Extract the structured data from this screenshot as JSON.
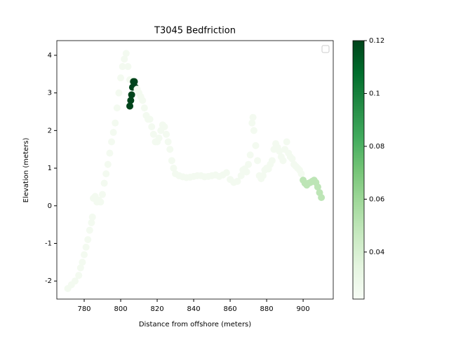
{
  "chart_data": {
    "type": "scatter",
    "title": "T3045 Bedfriction",
    "x_label": "Distance from offshore (meters)",
    "y_label": "Elevation (meters)",
    "x": [
      771,
      773,
      775,
      777,
      778,
      779,
      780,
      781,
      782,
      783,
      784,
      784.5,
      785,
      786,
      787,
      788,
      789,
      790,
      791,
      792,
      793,
      794,
      795,
      796,
      797,
      798,
      799,
      800,
      801,
      802,
      803,
      804,
      805,
      805,
      805.5,
      806,
      806.5,
      807,
      807.5,
      808,
      809,
      810,
      811,
      812,
      813,
      814,
      815,
      816,
      817,
      818,
      819,
      820,
      821,
      822,
      823,
      824,
      825,
      826,
      827,
      828,
      829,
      830,
      832,
      834,
      836,
      838,
      840,
      842,
      844,
      846,
      848,
      850,
      852,
      854,
      856,
      858,
      860,
      862,
      864,
      866,
      867,
      868,
      869,
      870,
      871,
      872,
      872.5,
      873,
      874,
      875,
      876,
      877,
      878,
      879,
      880,
      881,
      882,
      883,
      884,
      885,
      886,
      887,
      888,
      889,
      890,
      891,
      892,
      893,
      894,
      895,
      896,
      897,
      898,
      899,
      900,
      901,
      902,
      903,
      904,
      905,
      906,
      907,
      908,
      909,
      910
    ],
    "y": [
      -2.2,
      -2.1,
      -2.0,
      -1.85,
      -1.65,
      -1.5,
      -1.3,
      -1.1,
      -0.9,
      -0.65,
      -0.45,
      -0.3,
      0.2,
      0.25,
      0.1,
      0.15,
      0.1,
      0.3,
      0.6,
      0.85,
      1.1,
      1.4,
      1.7,
      1.95,
      2.2,
      2.6,
      3.0,
      3.4,
      3.7,
      3.9,
      4.05,
      3.7,
      3.35,
      2.65,
      2.8,
      2.95,
      3.15,
      3.3,
      3.3,
      3.15,
      3.1,
      3.0,
      2.9,
      2.8,
      2.6,
      2.4,
      2.3,
      2.3,
      2.1,
      1.9,
      1.7,
      1.7,
      1.8,
      2.0,
      2.15,
      2.1,
      1.9,
      1.7,
      1.5,
      1.2,
      1.0,
      0.85,
      0.8,
      0.77,
      0.75,
      0.76,
      0.78,
      0.8,
      0.8,
      0.77,
      0.78,
      0.8,
      0.82,
      0.78,
      0.82,
      0.88,
      0.7,
      0.62,
      0.65,
      0.8,
      0.95,
      0.98,
      0.9,
      1.1,
      1.35,
      2.2,
      2.35,
      2.0,
      1.6,
      1.2,
      0.8,
      0.72,
      0.8,
      0.95,
      1.0,
      0.98,
      1.1,
      1.2,
      1.5,
      1.65,
      1.55,
      1.45,
      1.3,
      1.2,
      1.5,
      1.7,
      1.4,
      1.3,
      1.25,
      1.1,
      1.05,
      1.0,
      0.95,
      0.85,
      0.68,
      0.6,
      0.55,
      0.6,
      0.62,
      0.65,
      0.68,
      0.62,
      0.5,
      0.35,
      0.22
    ],
    "c": [
      0.025,
      0.025,
      0.025,
      0.025,
      0.025,
      0.025,
      0.025,
      0.025,
      0.025,
      0.025,
      0.025,
      0.025,
      0.025,
      0.025,
      0.025,
      0.025,
      0.025,
      0.025,
      0.025,
      0.025,
      0.025,
      0.025,
      0.025,
      0.025,
      0.025,
      0.025,
      0.025,
      0.025,
      0.025,
      0.025,
      0.025,
      0.025,
      0.025,
      0.12,
      0.12,
      0.12,
      0.12,
      0.12,
      0.12,
      0.12,
      0.025,
      0.025,
      0.025,
      0.025,
      0.025,
      0.025,
      0.025,
      0.025,
      0.025,
      0.025,
      0.025,
      0.025,
      0.025,
      0.025,
      0.025,
      0.025,
      0.025,
      0.025,
      0.025,
      0.025,
      0.025,
      0.025,
      0.025,
      0.025,
      0.025,
      0.025,
      0.025,
      0.025,
      0.025,
      0.025,
      0.025,
      0.025,
      0.025,
      0.025,
      0.025,
      0.025,
      0.025,
      0.025,
      0.025,
      0.025,
      0.025,
      0.025,
      0.025,
      0.025,
      0.025,
      0.025,
      0.025,
      0.025,
      0.025,
      0.025,
      0.025,
      0.025,
      0.025,
      0.025,
      0.025,
      0.025,
      0.025,
      0.025,
      0.025,
      0.025,
      0.025,
      0.025,
      0.025,
      0.025,
      0.025,
      0.025,
      0.025,
      0.025,
      0.025,
      0.025,
      0.025,
      0.025,
      0.025,
      0.025,
      0.05,
      0.05,
      0.05,
      0.05,
      0.05,
      0.05,
      0.05,
      0.05,
      0.05,
      0.05,
      0.05
    ],
    "colormap": "Greens",
    "clim": [
      0.0222,
      0.12
    ],
    "cticks": [
      0.04,
      0.06,
      0.08,
      0.1,
      0.12
    ],
    "xlim": [
      765,
      916.5
    ],
    "xticks": [
      780,
      800,
      820,
      840,
      860,
      880,
      900
    ],
    "ylim": [
      -2.48,
      4.39
    ],
    "yticks": [
      -2,
      -1,
      0,
      1,
      2,
      3,
      4
    ]
  }
}
